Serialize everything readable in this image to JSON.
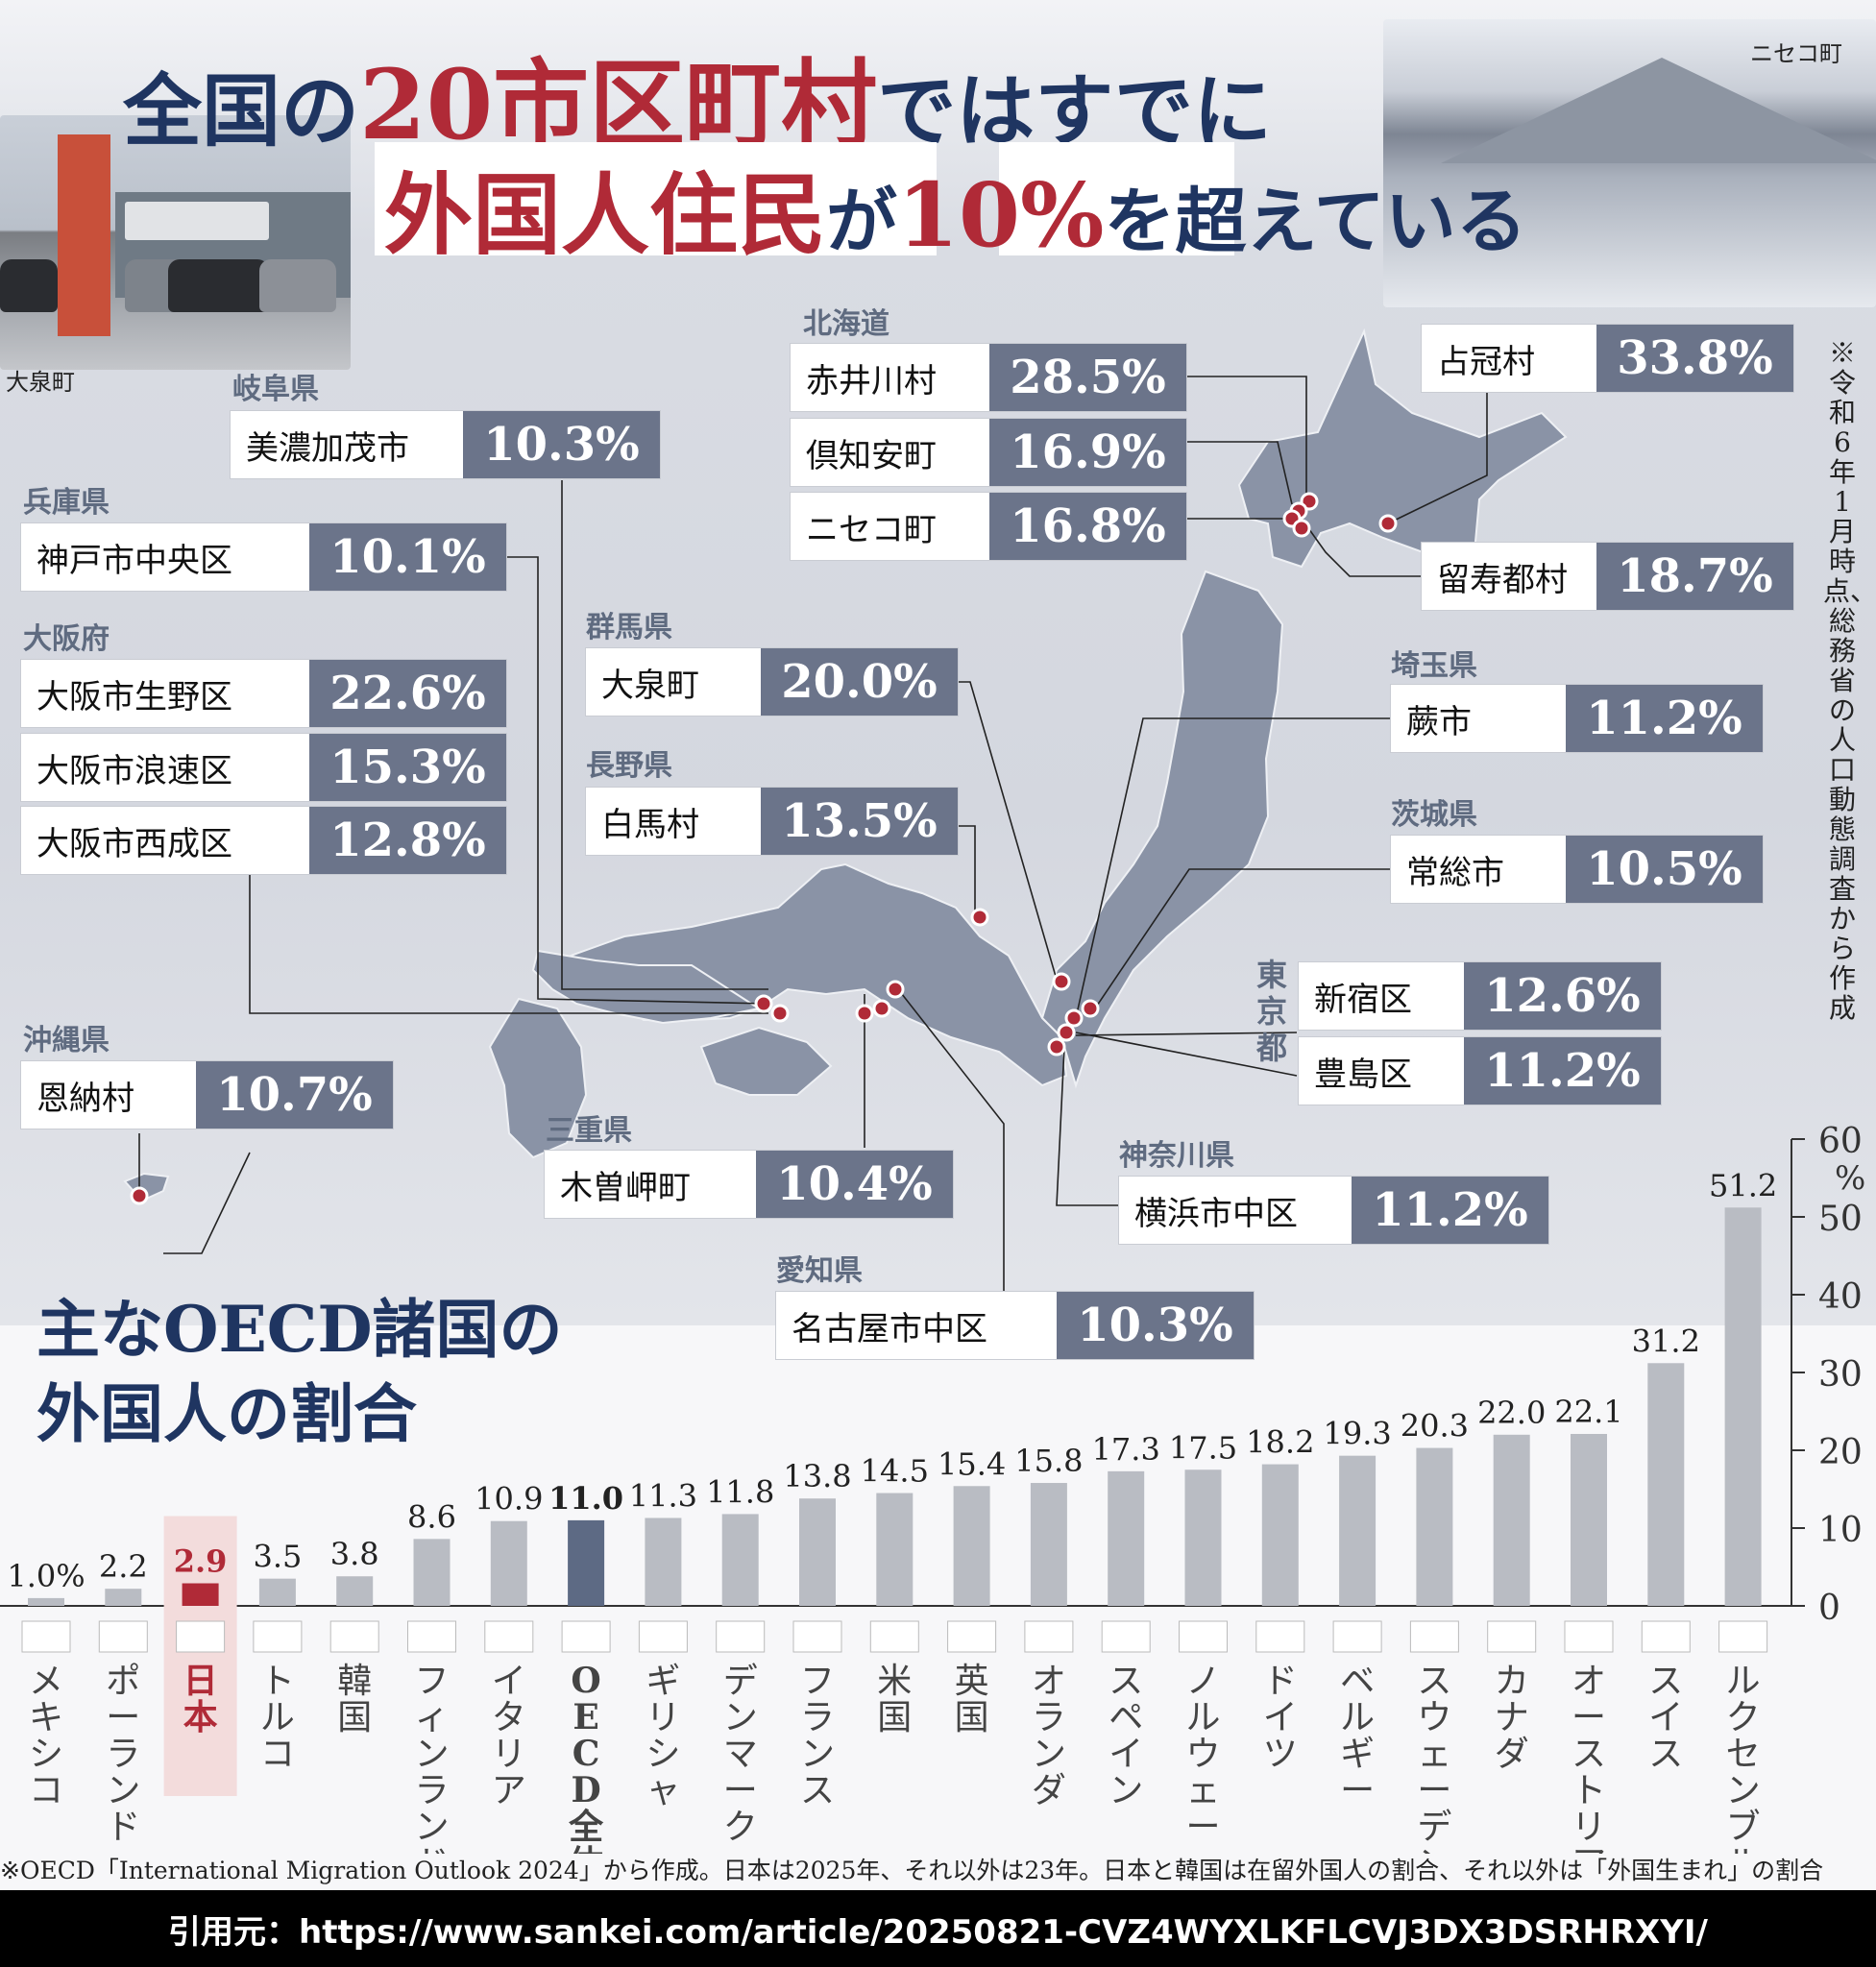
{
  "headline": {
    "line1_a": "全国の",
    "line1_b": "20市区町村",
    "line1_c": "ではすでに",
    "line2_a": "外国人住民",
    "line2_b": "が",
    "line2_c": "10%",
    "line2_d": "を超えている"
  },
  "photos": {
    "left_caption": "大泉町",
    "right_caption": "ニセコ町"
  },
  "source_note_vertical": "※令和6年1月時点、総務省の人口動態調査から作成",
  "map": {
    "groups": [
      {
        "pref": "北海道",
        "entries": [
          {
            "name": "赤井川村",
            "value": "28.5%"
          },
          {
            "name": "倶知安町",
            "value": "16.9%"
          },
          {
            "name": "ニセコ町",
            "value": "16.8%"
          }
        ]
      },
      {
        "pref": "",
        "entries": [
          {
            "name": "占冠村",
            "value": "33.8%"
          }
        ]
      },
      {
        "pref": "",
        "entries": [
          {
            "name": "留寿都村",
            "value": "18.7%"
          }
        ]
      },
      {
        "pref": "岐阜県",
        "entries": [
          {
            "name": "美濃加茂市",
            "value": "10.3%"
          }
        ]
      },
      {
        "pref": "兵庫県",
        "entries": [
          {
            "name": "神戸市中央区",
            "value": "10.1%"
          }
        ]
      },
      {
        "pref": "大阪府",
        "entries": [
          {
            "name": "大阪市生野区",
            "value": "22.6%"
          },
          {
            "name": "大阪市浪速区",
            "value": "15.3%"
          },
          {
            "name": "大阪市西成区",
            "value": "12.8%"
          }
        ]
      },
      {
        "pref": "群馬県",
        "entries": [
          {
            "name": "大泉町",
            "value": "20.0%"
          }
        ]
      },
      {
        "pref": "長野県",
        "entries": [
          {
            "name": "白馬村",
            "value": "13.5%"
          }
        ]
      },
      {
        "pref": "埼玉県",
        "entries": [
          {
            "name": "蕨市",
            "value": "11.2%"
          }
        ]
      },
      {
        "pref": "茨城県",
        "entries": [
          {
            "name": "常総市",
            "value": "10.5%"
          }
        ]
      },
      {
        "pref": "東京都",
        "entries": [
          {
            "name": "新宿区",
            "value": "12.6%"
          },
          {
            "name": "豊島区",
            "value": "11.2%"
          }
        ]
      },
      {
        "pref": "沖縄県",
        "entries": [
          {
            "name": "恩納村",
            "value": "10.7%"
          }
        ]
      },
      {
        "pref": "三重県",
        "entries": [
          {
            "name": "木曽岬町",
            "value": "10.4%"
          }
        ]
      },
      {
        "pref": "神奈川県",
        "entries": [
          {
            "name": "横浜市中区",
            "value": "11.2%"
          }
        ]
      },
      {
        "pref": "愛知県",
        "entries": [
          {
            "name": "名古屋市中区",
            "value": "10.3%"
          }
        ]
      }
    ]
  },
  "chart_title_line1": "主なOECD諸国の",
  "chart_title_line2": "外国人の割合",
  "chart_data": {
    "type": "bar",
    "title": "主なOECD諸国の外国人の割合",
    "categories": [
      "メキシコ",
      "ポーランド",
      "日本",
      "トルコ",
      "韓国",
      "フィンランド",
      "イタリア",
      "OECD全体",
      "ギリシャ",
      "デンマーク",
      "フランス",
      "米国",
      "英国",
      "オランダ",
      "スペイン",
      "ノルウェー",
      "ドイツ",
      "ベルギー",
      "スウェーデン",
      "カナダ",
      "オーストリア",
      "スイス",
      "ルクセンブルク"
    ],
    "values": [
      1.0,
      2.2,
      2.9,
      3.5,
      3.8,
      8.6,
      10.9,
      11.0,
      11.3,
      11.8,
      13.8,
      14.5,
      15.4,
      15.8,
      17.3,
      17.5,
      18.2,
      19.3,
      20.3,
      22.0,
      22.1,
      31.2,
      51.2
    ],
    "value_labels": [
      "1.0%",
      "2.2",
      "2.9",
      "3.5",
      "3.8",
      "8.6",
      "10.9",
      "11.0",
      "11.3",
      "11.8",
      "13.8",
      "14.5",
      "15.4",
      "15.8",
      "17.3",
      "17.5",
      "18.2",
      "19.3",
      "20.3",
      "22.0",
      "22.1",
      "31.2",
      "51.2"
    ],
    "highlight": {
      "日本": "#b02a37",
      "OECD全体": "#5d6a84"
    },
    "bar_color": "#b9bcc3",
    "ylim": [
      0,
      60
    ],
    "yticks": [
      0,
      10,
      20,
      30,
      40,
      50,
      60
    ],
    "yunit": "%",
    "y_axis_side": "right",
    "grid": false
  },
  "footnote": "※OECD「International Migration Outlook 2024」から作成。日本は2025年、それ以外は23年。日本と韓国は在留外国人の割合、それ以外は「外国生まれ」の割合",
  "citation": "引用元：https://www.sankei.com/article/20250821-CVZ4WYXLKFLCVJ3DX3DSRHRXYI/"
}
